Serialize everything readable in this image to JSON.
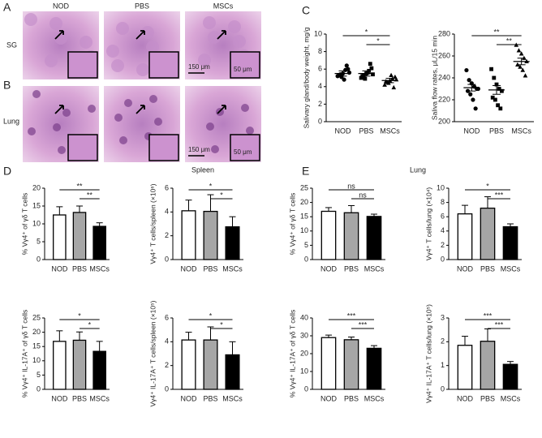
{
  "panel_labels": [
    "A",
    "B",
    "C",
    "D",
    "E"
  ],
  "section_titles": [
    "Spleen",
    "Lung"
  ],
  "histology": {
    "columns": [
      "NOD",
      "PBS",
      "MSCs"
    ],
    "rows": [
      "SG",
      "Lung"
    ],
    "scale_labels": [
      "150 μm",
      "50 μm",
      "150 μm",
      "50 μm"
    ]
  },
  "chart_data": [
    {
      "type": "scatter",
      "ylabel": "Salivary gland/body weight, mg/g",
      "categories": [
        "NOD",
        "PBS",
        "MSCs"
      ],
      "markers": [
        "circle",
        "square",
        "triangle"
      ],
      "points": [
        [
          5.2,
          5.4,
          5.5,
          5.9,
          6.0,
          5.3,
          5.1,
          4.8,
          6.4,
          5.6
        ],
        [
          5.0,
          5.3,
          5.5,
          5.8,
          6.1,
          5.2,
          4.9,
          5.6,
          6.6,
          5.4
        ],
        [
          4.2,
          4.5,
          4.7,
          4.9,
          5.1,
          4.6,
          4.4,
          5.3,
          3.9,
          4.8
        ]
      ],
      "means": [
        5.5,
        5.5,
        4.7
      ],
      "sems": [
        0.3,
        0.3,
        0.25
      ],
      "ylim": [
        0,
        10
      ],
      "yticks": [
        0,
        2,
        4,
        6,
        8,
        10
      ],
      "brackets": [
        {
          "pair": [
            "NOD",
            "MSCs"
          ],
          "label": "*"
        },
        {
          "pair": [
            "PBS",
            "MSCs"
          ],
          "label": "*"
        }
      ]
    },
    {
      "type": "scatter",
      "ylabel": "Saliva flow rates, μL/15 min",
      "categories": [
        "NOD",
        "PBS",
        "MSCs"
      ],
      "markers": [
        "circle",
        "square",
        "triangle"
      ],
      "points": [
        [
          247,
          238,
          235,
          232,
          230,
          228,
          225,
          220,
          212,
          230
        ],
        [
          248,
          240,
          234,
          230,
          228,
          222,
          220,
          215,
          212
        ],
        [
          270,
          265,
          262,
          258,
          255,
          252,
          250,
          247,
          242
        ]
      ],
      "means": [
        231,
        229,
        255
      ],
      "sems": [
        3,
        4,
        3
      ],
      "ylim": [
        200,
        280
      ],
      "yticks": [
        200,
        220,
        240,
        260,
        280
      ],
      "brackets": [
        {
          "pair": [
            "NOD",
            "MSCs"
          ],
          "label": "**"
        },
        {
          "pair": [
            "PBS",
            "MSCs"
          ],
          "label": "**"
        }
      ]
    },
    {
      "type": "bar",
      "ylabel": "% Vγ4⁺ of γδ T cells",
      "categories": [
        "NOD",
        "PBS",
        "MSCs"
      ],
      "colors": [
        "#ffffff",
        "#a6a6a6",
        "#000000"
      ],
      "values": [
        12.5,
        13.2,
        9.3
      ],
      "errors": [
        2.3,
        1.8,
        1.0
      ],
      "ylim": [
        0,
        20
      ],
      "yticks": [
        0,
        5,
        10,
        15,
        20
      ],
      "brackets": [
        {
          "pair": [
            "NOD",
            "MSCs"
          ],
          "label": "**"
        },
        {
          "pair": [
            "PBS",
            "MSCs"
          ],
          "label": "**"
        }
      ]
    },
    {
      "type": "bar",
      "ylabel": "Vγ4⁺ T cells/spleen (×10⁶)",
      "categories": [
        "NOD",
        "PBS",
        "MSCs"
      ],
      "colors": [
        "#ffffff",
        "#a6a6a6",
        "#000000"
      ],
      "values": [
        4.1,
        4.05,
        2.75
      ],
      "errors": [
        0.9,
        1.4,
        0.85
      ],
      "ylim": [
        0,
        6
      ],
      "yticks": [
        0,
        2,
        4,
        6
      ],
      "brackets": [
        {
          "pair": [
            "NOD",
            "MSCs"
          ],
          "label": "*"
        },
        {
          "pair": [
            "PBS",
            "MSCs"
          ],
          "label": "*"
        }
      ]
    },
    {
      "type": "bar",
      "ylabel": "% Vγ4⁺ IL-17A⁺ of γδ T cells",
      "categories": [
        "NOD",
        "PBS",
        "MSCs"
      ],
      "colors": [
        "#ffffff",
        "#a6a6a6",
        "#000000"
      ],
      "values": [
        16.8,
        17.2,
        13.3
      ],
      "errors": [
        3.7,
        2.9,
        3.5
      ],
      "ylim": [
        0,
        25
      ],
      "yticks": [
        0,
        5,
        10,
        15,
        20,
        25
      ],
      "brackets": [
        {
          "pair": [
            "NOD",
            "MSCs"
          ],
          "label": "*"
        },
        {
          "pair": [
            "PBS",
            "MSCs"
          ],
          "label": "*"
        }
      ]
    },
    {
      "type": "bar",
      "ylabel": "Vγ4⁺ IL-17A⁺ T cells/spleen (×10⁵)",
      "categories": [
        "NOD",
        "PBS",
        "MSCs"
      ],
      "colors": [
        "#ffffff",
        "#a6a6a6",
        "#000000"
      ],
      "values": [
        4.15,
        4.15,
        2.9
      ],
      "errors": [
        0.65,
        1.1,
        1.1
      ],
      "ylim": [
        0,
        6
      ],
      "yticks": [
        0,
        2,
        4,
        6
      ],
      "brackets": [
        {
          "pair": [
            "NOD",
            "MSCs"
          ],
          "label": "*"
        },
        {
          "pair": [
            "PBS",
            "MSCs"
          ],
          "label": "*"
        }
      ]
    },
    {
      "type": "bar",
      "ylabel": "% Vγ4⁺ of γδ T cells",
      "categories": [
        "NOD",
        "PBS",
        "MSCs"
      ],
      "colors": [
        "#ffffff",
        "#a6a6a6",
        "#000000"
      ],
      "values": [
        16.9,
        16.4,
        15.1
      ],
      "errors": [
        1.3,
        2.5,
        0.8
      ],
      "ylim": [
        0,
        25
      ],
      "yticks": [
        0,
        5,
        10,
        15,
        20,
        25
      ],
      "brackets": [
        {
          "pair": [
            "NOD",
            "MSCs"
          ],
          "label": "ns"
        },
        {
          "pair": [
            "PBS",
            "MSCs"
          ],
          "label": "ns"
        }
      ]
    },
    {
      "type": "bar",
      "ylabel": "Vγ4⁺ T cells/lung (×10⁴)",
      "categories": [
        "NOD",
        "PBS",
        "MSCs"
      ],
      "colors": [
        "#ffffff",
        "#a6a6a6",
        "#000000"
      ],
      "values": [
        6.4,
        7.2,
        4.6
      ],
      "errors": [
        1.2,
        1.6,
        0.4
      ],
      "ylim": [
        0,
        10
      ],
      "yticks": [
        0,
        2,
        4,
        6,
        8,
        10
      ],
      "brackets": [
        {
          "pair": [
            "NOD",
            "MSCs"
          ],
          "label": "*"
        },
        {
          "pair": [
            "PBS",
            "MSCs"
          ],
          "label": "***"
        }
      ]
    },
    {
      "type": "bar",
      "ylabel": "% Vγ4⁺ IL-17A⁺ of γδ T cells",
      "categories": [
        "NOD",
        "PBS",
        "MSCs"
      ],
      "colors": [
        "#ffffff",
        "#a6a6a6",
        "#000000"
      ],
      "values": [
        29,
        27.8,
        23
      ],
      "errors": [
        1.4,
        1.5,
        1.5
      ],
      "ylim": [
        0,
        40
      ],
      "yticks": [
        0,
        10,
        20,
        30,
        40
      ],
      "brackets": [
        {
          "pair": [
            "NOD",
            "MSCs"
          ],
          "label": "***"
        },
        {
          "pair": [
            "PBS",
            "MSCs"
          ],
          "label": "***"
        }
      ]
    },
    {
      "type": "bar",
      "ylabel": "Vγ4⁺ IL-17A⁺ T cells/lung (×10⁵)",
      "categories": [
        "NOD",
        "PBS",
        "MSCs"
      ],
      "colors": [
        "#ffffff",
        "#a6a6a6",
        "#000000"
      ],
      "values": [
        1.85,
        2.02,
        1.05
      ],
      "errors": [
        0.38,
        0.52,
        0.12
      ],
      "ylim": [
        0,
        3
      ],
      "yticks": [
        0,
        1,
        2,
        3
      ],
      "brackets": [
        {
          "pair": [
            "NOD",
            "MSCs"
          ],
          "label": "***"
        },
        {
          "pair": [
            "PBS",
            "MSCs"
          ],
          "label": "***"
        }
      ]
    }
  ]
}
